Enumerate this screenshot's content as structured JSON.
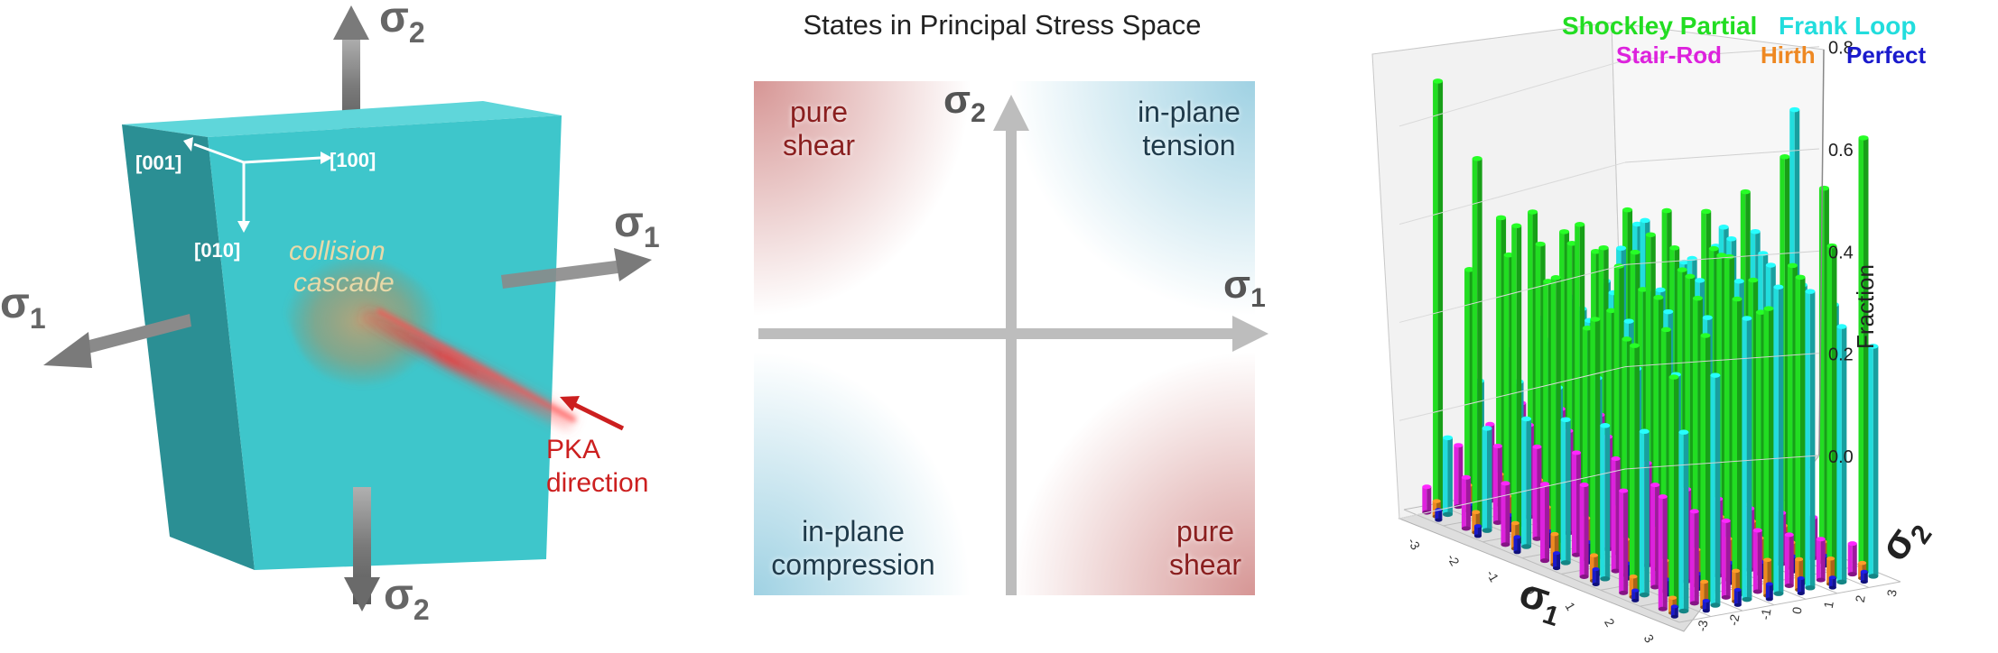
{
  "cube_panel": {
    "sigma_symbol": "σ",
    "sub_1": "1",
    "sub_2": "2",
    "dir_100": "[100]",
    "dir_001": "[001]",
    "dir_010": "[010]",
    "cascade_line1": "collision",
    "cascade_line2": "cascade",
    "pka_line1": "PKA",
    "pka_line2": "direction",
    "colors": {
      "cube_front": "#3ec6cb",
      "cube_side": "#2b8f94",
      "cube_top": "#5fd6da",
      "pka": "#cc1f1f",
      "arrow": "#8a8a8a"
    }
  },
  "stress_space": {
    "title": "States in Principal Stress Space",
    "sigma_symbol": "σ",
    "sub_1": "1",
    "sub_2": "2",
    "q_top_left": [
      "pure",
      "shear"
    ],
    "q_top_right": [
      "in-plane",
      "tension"
    ],
    "q_bottom_left": [
      "in-plane",
      "compression"
    ],
    "q_bottom_right": [
      "pure",
      "shear"
    ],
    "colors": {
      "shear": "#b5403e",
      "tension": "#5fb3d0",
      "axis": "#bdbdbd",
      "shear_text": "#8a1f1f",
      "tension_text": "#1f3a4a"
    }
  },
  "chart_panel": {
    "legend": [
      {
        "label": "Shockley Partial",
        "color": "#22dd22"
      },
      {
        "label": "Frank Loop",
        "color": "#22dddd"
      },
      {
        "label": "Stair-Rod",
        "color": "#dd22dd"
      },
      {
        "label": "Hirth",
        "color": "#ee8822"
      },
      {
        "label": "Perfect",
        "color": "#1a1acc"
      }
    ],
    "z_ticks": [
      "0.0",
      "0.2",
      "0.4",
      "0.6",
      "0.8"
    ],
    "z_label": "Fraction",
    "x_label": "σ",
    "x_label_sub": "1",
    "y_label": "σ",
    "y_label_sub": "2",
    "x_ticks": [
      "-3",
      "-2",
      "-1",
      "0",
      "1",
      "2",
      "3"
    ],
    "y_ticks": [
      "-3",
      "-2",
      "-1",
      "0",
      "1",
      "2",
      "3"
    ]
  },
  "chart_data": {
    "type": "bar",
    "x": [
      "-3",
      "-2",
      "-1",
      "0",
      "1",
      "2",
      "3"
    ],
    "y": [
      "-3",
      "-2",
      "-1",
      "0",
      "1",
      "2",
      "3"
    ],
    "zlim": [
      0,
      0.85
    ],
    "zlabel": "Fraction",
    "series": [
      {
        "name": "Shockley Partial",
        "values": [
          [
            0.84,
            0.46,
            0.55,
            0.55,
            0.5,
            0.45,
            0.52
          ],
          [
            0.72,
            0.52,
            0.53,
            0.52,
            0.5,
            0.48,
            0.55
          ],
          [
            0.62,
            0.5,
            0.6,
            0.42,
            0.45,
            0.52,
            0.58
          ],
          [
            0.55,
            0.44,
            0.55,
            0.6,
            0.52,
            0.55,
            0.65
          ],
          [
            0.5,
            0.45,
            0.52,
            0.55,
            0.58,
            0.52,
            0.75
          ],
          [
            0.48,
            0.5,
            0.55,
            0.62,
            0.5,
            0.58,
            0.72
          ],
          [
            0.45,
            0.52,
            0.58,
            0.55,
            0.6,
            0.65,
            0.85
          ]
        ]
      },
      {
        "name": "Frank Loop",
        "values": [
          [
            0.15,
            0.25,
            0.3,
            0.35,
            0.38,
            0.4,
            0.5
          ],
          [
            0.2,
            0.28,
            0.35,
            0.4,
            0.42,
            0.55,
            0.45
          ],
          [
            0.25,
            0.3,
            0.42,
            0.55,
            0.45,
            0.5,
            0.52
          ],
          [
            0.28,
            0.35,
            0.45,
            0.5,
            0.55,
            0.6,
            0.58
          ],
          [
            0.3,
            0.4,
            0.5,
            0.55,
            0.62,
            0.58,
            0.85
          ],
          [
            0.32,
            0.42,
            0.52,
            0.58,
            0.6,
            0.55,
            0.5
          ],
          [
            0.35,
            0.45,
            0.55,
            0.6,
            0.58,
            0.5,
            0.45
          ]
        ]
      },
      {
        "name": "Stair-Rod",
        "values": [
          [
            0.05,
            0.12,
            0.15,
            0.18,
            0.2,
            0.22,
            0.2
          ],
          [
            0.1,
            0.15,
            0.18,
            0.2,
            0.22,
            0.2,
            0.18
          ],
          [
            0.12,
            0.18,
            0.2,
            0.22,
            0.2,
            0.18,
            0.15
          ],
          [
            0.15,
            0.2,
            0.22,
            0.2,
            0.18,
            0.15,
            0.12
          ],
          [
            0.18,
            0.22,
            0.2,
            0.18,
            0.15,
            0.12,
            0.1
          ],
          [
            0.2,
            0.2,
            0.18,
            0.15,
            0.12,
            0.1,
            0.08
          ],
          [
            0.22,
            0.18,
            0.15,
            0.12,
            0.1,
            0.08,
            0.06
          ]
        ]
      },
      {
        "name": "Hirth",
        "values": [
          [
            0.03,
            0.05,
            0.06,
            0.08,
            0.07,
            0.06,
            0.05
          ],
          [
            0.04,
            0.06,
            0.08,
            0.07,
            0.06,
            0.05,
            0.04
          ],
          [
            0.05,
            0.07,
            0.08,
            0.09,
            0.08,
            0.06,
            0.05
          ],
          [
            0.06,
            0.08,
            0.09,
            0.1,
            0.08,
            0.07,
            0.05
          ],
          [
            0.05,
            0.07,
            0.08,
            0.09,
            0.08,
            0.06,
            0.04
          ],
          [
            0.04,
            0.06,
            0.07,
            0.08,
            0.07,
            0.05,
            0.04
          ],
          [
            0.03,
            0.05,
            0.06,
            0.07,
            0.06,
            0.05,
            0.03
          ]
        ]
      },
      {
        "name": "Perfect",
        "values": [
          [
            0.02,
            0.02,
            0.03,
            0.03,
            0.03,
            0.02,
            0.02
          ],
          [
            0.02,
            0.03,
            0.03,
            0.04,
            0.03,
            0.03,
            0.02
          ],
          [
            0.03,
            0.03,
            0.04,
            0.04,
            0.04,
            0.03,
            0.03
          ],
          [
            0.03,
            0.04,
            0.04,
            0.05,
            0.04,
            0.04,
            0.03
          ],
          [
            0.03,
            0.03,
            0.04,
            0.04,
            0.04,
            0.03,
            0.03
          ],
          [
            0.02,
            0.03,
            0.03,
            0.04,
            0.03,
            0.03,
            0.02
          ],
          [
            0.02,
            0.02,
            0.03,
            0.03,
            0.03,
            0.02,
            0.02
          ]
        ]
      }
    ]
  }
}
